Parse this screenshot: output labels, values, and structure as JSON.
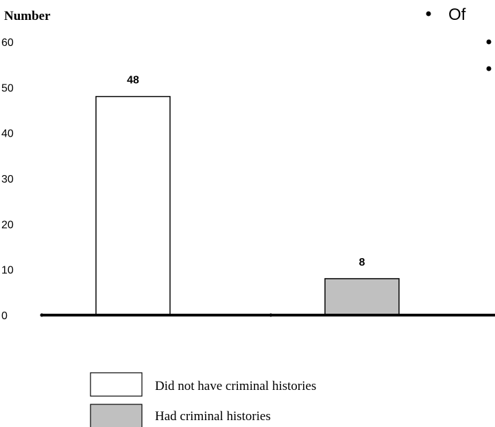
{
  "chart_data": {
    "type": "bar",
    "ylabel": "Number",
    "ylim": [
      0,
      60
    ],
    "yticks": [
      0,
      10,
      20,
      30,
      40,
      50,
      60
    ],
    "grid": false,
    "legend_position": "bottom",
    "series": [
      {
        "name": "Did not have criminal histories",
        "values": [
          48
        ],
        "color": "#ffffff",
        "show_value_label": true
      },
      {
        "name": "Had criminal histories",
        "values": [
          8
        ],
        "color": "#c0c0c0",
        "show_value_label": true
      }
    ]
  },
  "bullets": {
    "top_text": "Of"
  },
  "colors": {
    "bar_outline": "#000000",
    "axis": "#000000"
  }
}
